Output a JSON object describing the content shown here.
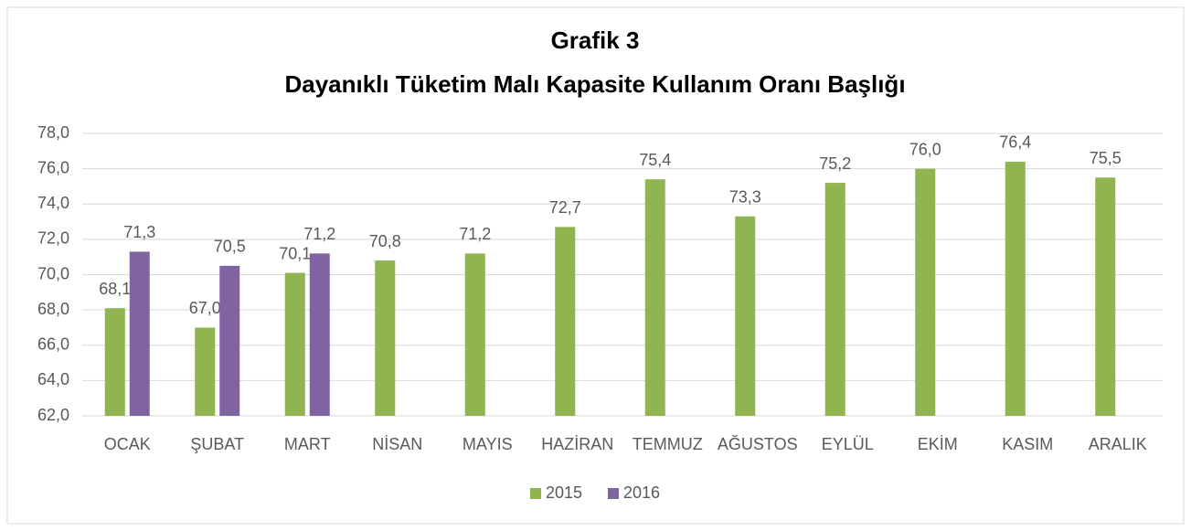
{
  "chart_data": {
    "type": "bar",
    "title": "Grafik 3",
    "subtitle": "Dayanıklı Tüketim Malı Kapasite Kullanım Oranı Başlığı",
    "categories": [
      "OCAK",
      "ŞUBAT",
      "MART",
      "NİSAN",
      "MAYIS",
      "HAZİRAN",
      "TEMMUZ",
      "AĞUSTOS",
      "EYLÜL",
      "EKİM",
      "KASIM",
      "ARALIK"
    ],
    "series": [
      {
        "name": "2015",
        "color": "#8fb450",
        "values": [
          68.1,
          67.0,
          70.1,
          70.8,
          71.2,
          72.7,
          75.4,
          73.3,
          75.2,
          76.0,
          76.4,
          75.5
        ],
        "value_labels": [
          "68,1",
          "67,0",
          "70,1",
          "70,8",
          "71,2",
          "72,7",
          "75,4",
          "73,3",
          "75,2",
          "76,0",
          "76,4",
          "75,5"
        ]
      },
      {
        "name": "2016",
        "color": "#8064a2",
        "values": [
          71.3,
          70.5,
          71.2,
          null,
          null,
          null,
          null,
          null,
          null,
          null,
          null,
          null
        ],
        "value_labels": [
          "71,3",
          "70,5",
          "71,2",
          null,
          null,
          null,
          null,
          null,
          null,
          null,
          null,
          null
        ]
      }
    ],
    "ylim": [
      62,
      78
    ],
    "yticks": [
      {
        "value": 62,
        "label": "62,0"
      },
      {
        "value": 64,
        "label": "64,0"
      },
      {
        "value": 66,
        "label": "66,0"
      },
      {
        "value": 68,
        "label": "68,0"
      },
      {
        "value": 70,
        "label": "70,0"
      },
      {
        "value": 72,
        "label": "72,0"
      },
      {
        "value": 74,
        "label": "74,0"
      },
      {
        "value": 76,
        "label": "76,0"
      },
      {
        "value": 78,
        "label": "78,0"
      }
    ],
    "grid": true,
    "legend": "bottom"
  }
}
